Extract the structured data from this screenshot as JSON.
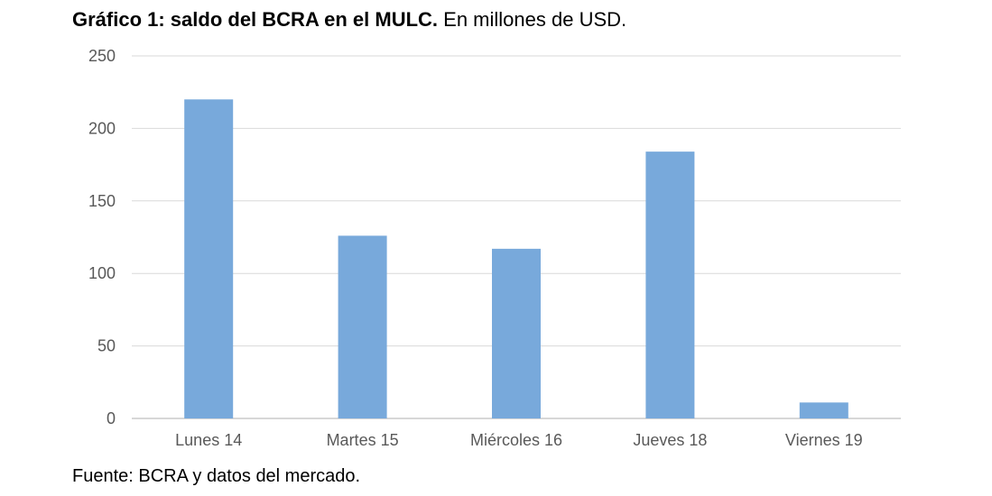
{
  "title": {
    "bold": "Gráfico 1: saldo del BCRA en el MULC.",
    "normal": "En millones de USD."
  },
  "source": "Fuente: BCRA y datos del mercado.",
  "colors": {
    "bar": "#78a9db",
    "grid": "#d9d9d9",
    "tick_text": "#595959"
  },
  "chart_data": {
    "type": "bar",
    "categories": [
      "Lunes 14",
      "Martes 15",
      "Miércoles 16",
      "Jueves 18",
      "Viernes 19"
    ],
    "values": [
      220,
      126,
      117,
      184,
      11
    ],
    "xlabel": "",
    "ylabel": "",
    "ylim": [
      0,
      250
    ],
    "yticks": [
      0,
      50,
      100,
      150,
      200,
      250
    ],
    "grid": true,
    "legend": "none"
  }
}
